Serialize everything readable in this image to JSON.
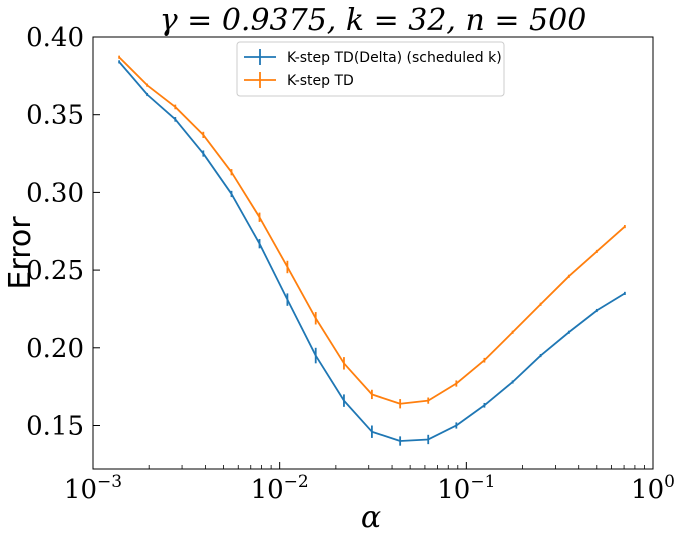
{
  "chart_data": {
    "type": "line",
    "title": "γ = 0.9375, k = 32, n = 500",
    "xlabel": "α",
    "ylabel": "Error",
    "x_scale": "log",
    "xlim": [
      0.001,
      1
    ],
    "ylim": [
      0.122,
      0.4
    ],
    "x_ticks": [
      {
        "value": 0.001,
        "base": "10",
        "exp": "−3"
      },
      {
        "value": 0.01,
        "base": "10",
        "exp": "−2"
      },
      {
        "value": 0.1,
        "base": "10",
        "exp": "−1"
      },
      {
        "value": 1,
        "base": "10",
        "exp": "0"
      }
    ],
    "y_ticks": [
      {
        "value": 0.15,
        "label": "0.15"
      },
      {
        "value": 0.2,
        "label": "0.20"
      },
      {
        "value": 0.25,
        "label": "0.25"
      },
      {
        "value": 0.3,
        "label": "0.30"
      },
      {
        "value": 0.35,
        "label": "0.35"
      },
      {
        "value": 0.4,
        "label": "0.40"
      }
    ],
    "x": [
      0.00138,
      0.00195,
      0.00276,
      0.0039,
      0.00552,
      0.0078,
      0.011,
      0.0156,
      0.0221,
      0.0312,
      0.0442,
      0.0625,
      0.0884,
      0.125,
      0.177,
      0.25,
      0.354,
      0.5,
      0.707
    ],
    "series": [
      {
        "name": "K-step TD(Delta) (scheduled k)",
        "color": "#1f77b4",
        "values": [
          0.384,
          0.363,
          0.347,
          0.325,
          0.299,
          0.267,
          0.231,
          0.195,
          0.166,
          0.146,
          0.14,
          0.141,
          0.15,
          0.163,
          0.178,
          0.195,
          0.21,
          0.224,
          0.235
        ],
        "errors": [
          0.001,
          0.001,
          0.0015,
          0.002,
          0.002,
          0.003,
          0.004,
          0.005,
          0.004,
          0.004,
          0.003,
          0.003,
          0.002,
          0.0015,
          0.001,
          0.001,
          0.001,
          0.001,
          0.001
        ]
      },
      {
        "name": "K-step TD",
        "color": "#ff7f0e",
        "values": [
          0.387,
          0.369,
          0.355,
          0.337,
          0.313,
          0.284,
          0.252,
          0.219,
          0.19,
          0.17,
          0.164,
          0.166,
          0.177,
          0.192,
          0.21,
          0.228,
          0.246,
          0.262,
          0.278
        ],
        "errors": [
          0.001,
          0.001,
          0.0015,
          0.002,
          0.002,
          0.003,
          0.004,
          0.004,
          0.004,
          0.003,
          0.003,
          0.002,
          0.002,
          0.0015,
          0.001,
          0.001,
          0.001,
          0.001,
          0.001
        ]
      }
    ],
    "legend_position": "upper-center"
  }
}
